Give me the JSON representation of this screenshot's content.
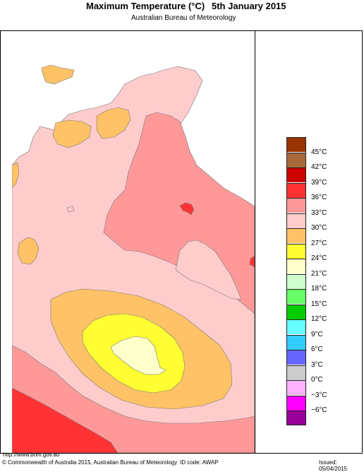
{
  "header": {
    "title": "Maximum Temperature (°C)",
    "date": "5th January 2015",
    "subtitle": "Australian Bureau of Meteorology"
  },
  "legend": {
    "items": [
      {
        "label": "45°C",
        "color": "#993300"
      },
      {
        "label": "42°C",
        "color": "#a86a3a"
      },
      {
        "label": "39°C",
        "color": "#cc0000"
      },
      {
        "label": "36°C",
        "color": "#ff3333"
      },
      {
        "label": "33°C",
        "color": "#ff9999"
      },
      {
        "label": "30°C",
        "color": "#ffcccc"
      },
      {
        "label": "27°C",
        "color": "#ffc266"
      },
      {
        "label": "24°C",
        "color": "#ffff33"
      },
      {
        "label": "21°C",
        "color": "#ffffcc"
      },
      {
        "label": "18°C",
        "color": "#ccffcc"
      },
      {
        "label": "15°C",
        "color": "#66ff66"
      },
      {
        "label": "12°C",
        "color": "#00cc00"
      },
      {
        "label": "9°C",
        "color": "#66ffff"
      },
      {
        "label": "6°C",
        "color": "#33ccff"
      },
      {
        "label": "3°C",
        "color": "#6666ff"
      },
      {
        "label": "0°C",
        "color": "#cccccc"
      },
      {
        "label": "−3°C",
        "color": "#ffb3ff"
      },
      {
        "label": "−6°C",
        "color": "#ff00ff"
      },
      {
        "label": "",
        "color": "#990099"
      }
    ]
  },
  "footer": {
    "url": "http://www.bom.gov.au",
    "copyright": "© Commonwealth of Australia 2015, Australian Bureau of Meteorology",
    "id_code": "ID code: AWAP",
    "issued": "Issued: 05/04/2015"
  },
  "colors": {
    "sea": "#ffffff",
    "base": "#ffcccc",
    "c33": "#ff9999",
    "c36": "#ff3333",
    "c27": "#ffc266",
    "c24": "#ffff33",
    "c21": "#ffffcc"
  }
}
